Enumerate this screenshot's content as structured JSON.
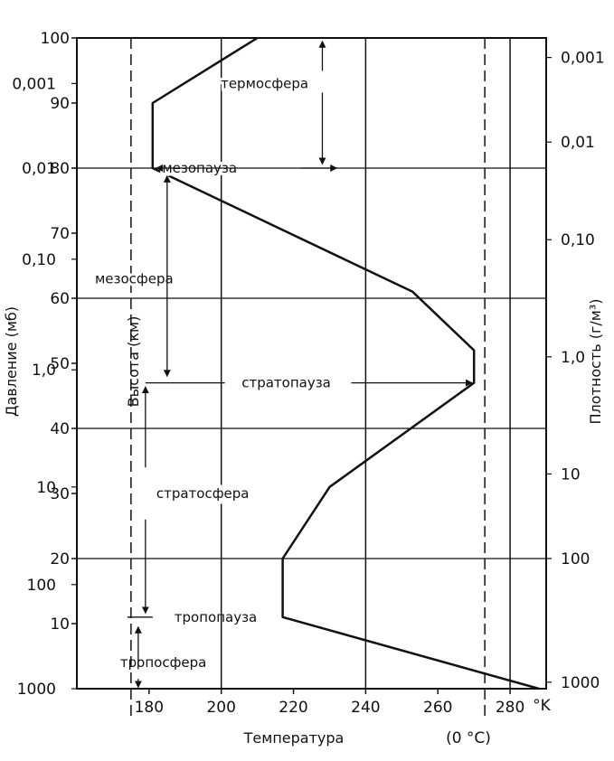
{
  "chart_data": {
    "type": "line",
    "xlabel": "Температура",
    "x_unit": "°K",
    "x_celsius_label": "(0 °C)",
    "ylabel": "Высота (км)",
    "left_label": "Давление (мб)",
    "right_label": "Плотность (г/м³)",
    "xlim": [
      160,
      290
    ],
    "ylim": [
      0,
      100
    ],
    "x_ticks": [
      "180",
      "200",
      "220",
      "240",
      "260",
      "280"
    ],
    "y_ticks": [
      "10",
      "20",
      "30",
      "40",
      "50",
      "60",
      "70",
      "80",
      "90",
      "100"
    ],
    "pressure_ticks": [
      {
        "label": "0,001",
        "alt": 93
      },
      {
        "label": "0,01",
        "alt": 80
      },
      {
        "label": "0,10",
        "alt": 66
      },
      {
        "label": "1,0",
        "alt": 49
      },
      {
        "label": "10",
        "alt": 31
      },
      {
        "label": "100",
        "alt": 16
      },
      {
        "label": "1000",
        "alt": 0
      }
    ],
    "density_ticks": [
      {
        "label": "0,001",
        "alt": 97
      },
      {
        "label": "0,01",
        "alt": 84
      },
      {
        "label": "0,10",
        "alt": 69
      },
      {
        "label": "1,0",
        "alt": 51
      },
      {
        "label": "10",
        "alt": 33
      },
      {
        "label": "100",
        "alt": 20
      },
      {
        "label": "1000",
        "alt": 1
      }
    ],
    "x_gridlines": [
      200,
      240,
      280
    ],
    "y_gridlines": [
      20,
      40,
      60,
      80
    ],
    "dashed_x": [
      175,
      273
    ],
    "series": [
      {
        "x": [
          288,
          217,
          217,
          230,
          270,
          270,
          253,
          181,
          181,
          210
        ],
        "y": [
          0,
          11,
          20,
          31,
          47,
          52,
          61,
          80,
          90,
          100
        ]
      }
    ],
    "layers": [
      {
        "text": "термосфера",
        "temp": 212,
        "alt": 93
      },
      {
        "text": "мезопауза",
        "temp": 194,
        "alt": 80
      },
      {
        "text": "мезосфера",
        "temp": 165,
        "alt": 63
      },
      {
        "text": "стратопауза",
        "temp": 218,
        "alt": 47
      },
      {
        "text": "стратосфера",
        "temp": 182,
        "alt": 30
      },
      {
        "text": "тропопауза",
        "temp": 187,
        "alt": 11
      },
      {
        "text": "тропосфера",
        "temp": 172,
        "alt": 4
      }
    ]
  }
}
